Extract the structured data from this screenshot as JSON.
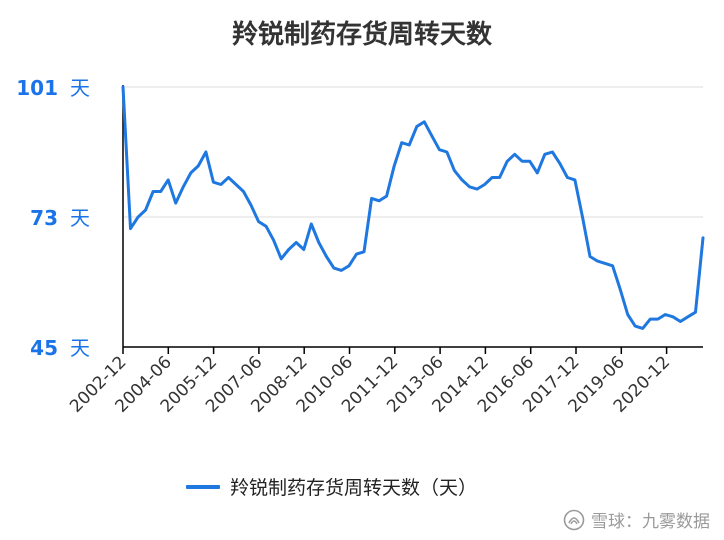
{
  "title": "羚锐制药存货周转天数",
  "chart_data": {
    "type": "line",
    "title": "羚锐制药存货周转天数",
    "y_ticks": [
      "101 天",
      "73 天",
      "45 天"
    ],
    "y_tick_values": [
      101,
      73,
      45
    ],
    "ylim": [
      45,
      101
    ],
    "x_tick_labels": [
      "2002-12",
      "2004-06",
      "2005-12",
      "2007-06",
      "2008-12",
      "2010-06",
      "2011-12",
      "2013-06",
      "2014-12",
      "2016-06",
      "2017-12",
      "2019-06",
      "2020-12"
    ],
    "grid": "horizontal",
    "legend_position": "bottom",
    "series": [
      {
        "name": "羚锐制药存货周转天数（天）",
        "color": "#1f77e0",
        "values": [
          101,
          70.5,
          73,
          74.5,
          78.5,
          78.5,
          81,
          76,
          79.5,
          82.5,
          84,
          87,
          80.5,
          80,
          81.5,
          80,
          78.5,
          75.5,
          72,
          71,
          68,
          64,
          66,
          67.5,
          66,
          71.5,
          67.5,
          64.5,
          62,
          61.5,
          62.5,
          65,
          65.5,
          77,
          76.5,
          77.5,
          84,
          89,
          88.5,
          92.5,
          93.5,
          90.5,
          87.5,
          87,
          83,
          81,
          79.5,
          79,
          80,
          81.5,
          81.5,
          85,
          86.5,
          85,
          85,
          82.5,
          86.5,
          87,
          84.5,
          81.5,
          81,
          73,
          64.5,
          63.5,
          63,
          62.5,
          57.5,
          52,
          49.5,
          49,
          51,
          51,
          52,
          51.5,
          50.5,
          51.5,
          52.5,
          68.5
        ]
      }
    ]
  },
  "legend": {
    "label": "羚锐制药存货周转天数（天）"
  },
  "watermark": {
    "text": "雪球：九雾数据"
  }
}
